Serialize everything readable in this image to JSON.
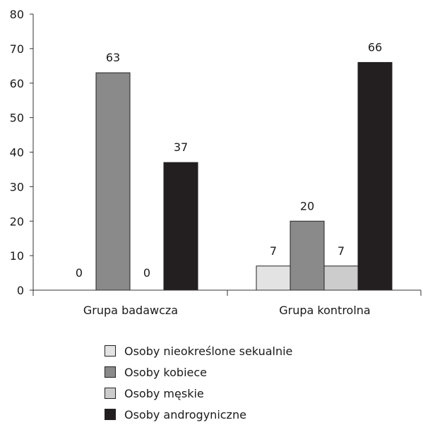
{
  "chart_data": {
    "type": "bar",
    "categories": [
      "Grupa badawcza",
      "Grupa kontrolna"
    ],
    "series": [
      {
        "name": "Osoby nieokreślone sekualnie",
        "values": [
          0,
          7
        ],
        "color": "#e3e3e3"
      },
      {
        "name": "Osoby kobiece",
        "values": [
          63,
          20
        ],
        "color": "#8a8a8a"
      },
      {
        "name": "Osoby męskie",
        "values": [
          0,
          7
        ],
        "color": "#cccccc"
      },
      {
        "name": "Osoby androgyniczne",
        "values": [
          37,
          66
        ],
        "color": "#231f20"
      }
    ],
    "data_labels": [
      [
        "0",
        "63",
        "0",
        "37"
      ],
      [
        "7",
        "20",
        "7",
        "66"
      ]
    ],
    "title": "",
    "xlabel": "",
    "ylabel": "",
    "ylim": [
      0,
      80
    ],
    "yticks": [
      0,
      10,
      20,
      30,
      40,
      50,
      60,
      70,
      80
    ],
    "grid": false,
    "legend_position": "bottom"
  }
}
